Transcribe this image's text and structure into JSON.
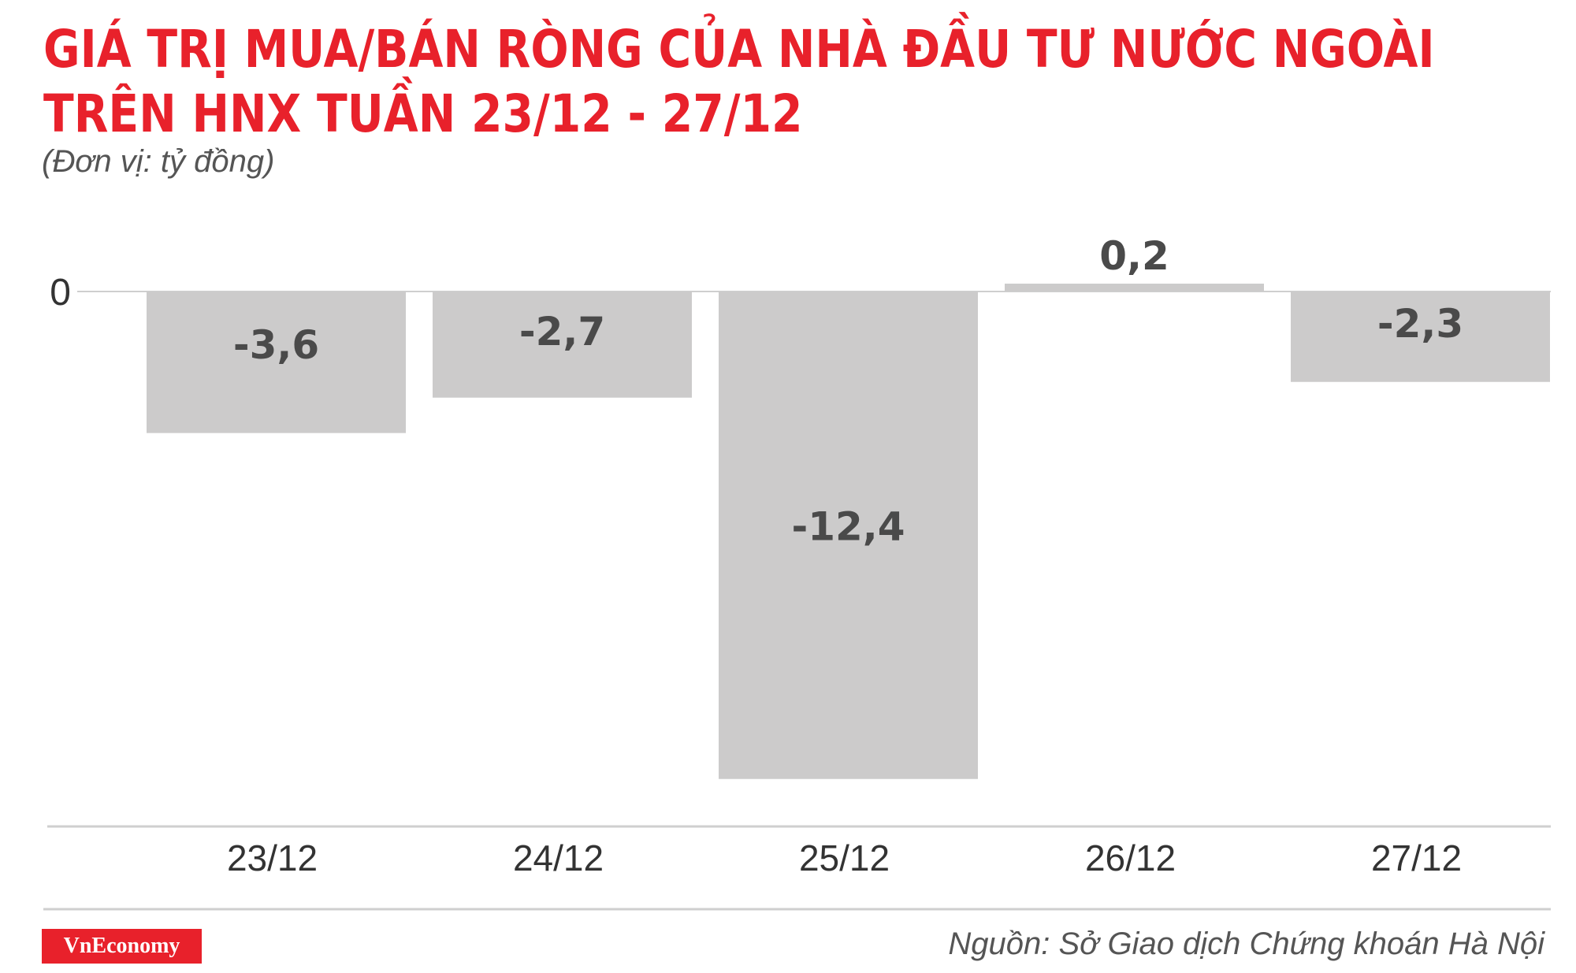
{
  "title_line1": "GIÁ TRỊ MUA/BÁN RÒNG CỦA NHÀ ĐẦU TƯ NƯỚC NGOÀI",
  "title_line2": "TRÊN HNX TUẦN 23/12 - 27/12",
  "unit": "(Đơn vị: tỷ đồng)",
  "brand": "VnEconomy",
  "source": "Nguồn: Sở Giao dịch Chứng khoán Hà Nội",
  "colors": {
    "title": "#e8212b",
    "bar": "#cccbcb",
    "label": "#4a4a4a",
    "brand_bg": "#e8212b"
  },
  "chart_data": {
    "type": "bar",
    "categories": [
      "23/12",
      "24/12",
      "25/12",
      "26/12",
      "27/12"
    ],
    "values": [
      -3.6,
      -2.7,
      -12.4,
      0.2,
      -2.3
    ],
    "value_labels": [
      "-3,6",
      "-2,7",
      "-12,4",
      "0,2",
      "-2,3"
    ],
    "y_tick_labels": [
      "0"
    ],
    "ylim": [
      -13.3,
      1.0
    ],
    "grid": false,
    "legend": "none"
  }
}
